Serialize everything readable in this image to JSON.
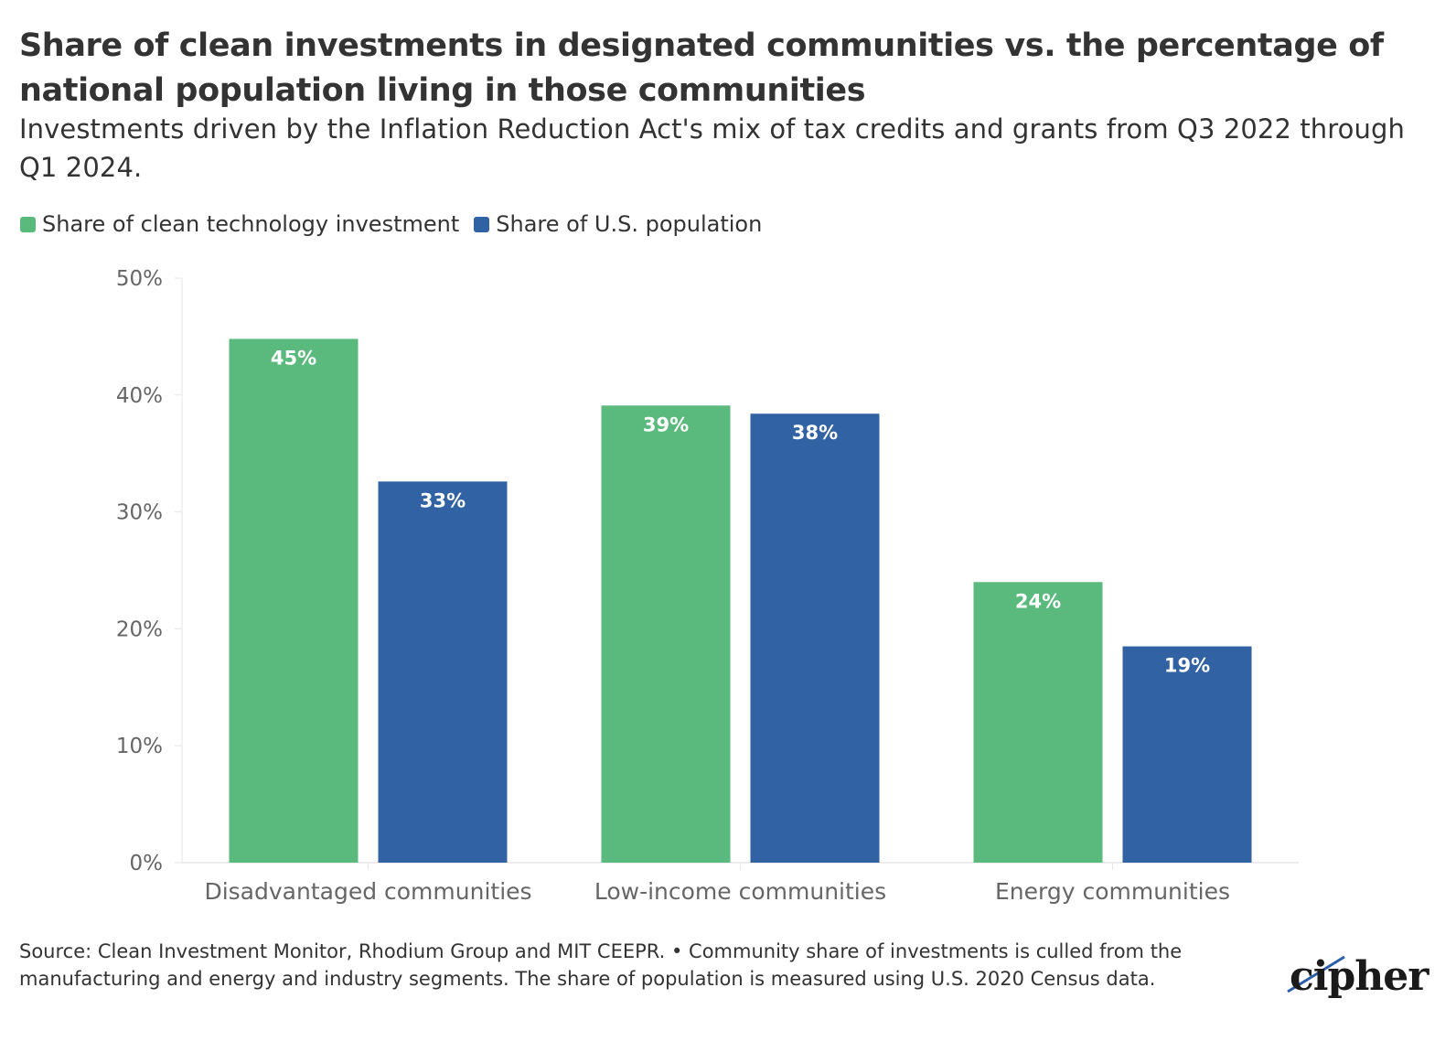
{
  "title": "Share of clean investments in designated communities vs. the percentage of national population living in those communities",
  "subtitle": "Investments driven by the Inflation Reduction Act's mix of tax credits and grants from Q3 2022 through Q1 2024.",
  "legend": [
    {
      "label": "Share of clean technology investment",
      "color": "#5ab97c"
    },
    {
      "label": "Share of U.S. population",
      "color": "#3162a3"
    }
  ],
  "source": "Source: Clean Investment Monitor, Rhodium Group and MIT CEEPR. • Community share of investments is culled from the manufacturing and energy and industry segments. The share of population is measured using U.S. 2020 Census data.",
  "logo": {
    "text": "cipher"
  },
  "colors": {
    "green": "#5ab97c",
    "blue": "#3162a3",
    "text": "#333333",
    "axis_text": "#666666",
    "gridline": "#e6e6e6"
  },
  "chart_data": {
    "type": "bar",
    "categories": [
      "Disadvantaged communities",
      "Low-income communities",
      "Energy communities"
    ],
    "series": [
      {
        "name": "Share of clean technology investment",
        "values": [
          44.8,
          39.1,
          24.0
        ],
        "labels": [
          "45%",
          "39%",
          "24%"
        ],
        "color": "#5ab97c"
      },
      {
        "name": "Share of U.S. population",
        "values": [
          32.6,
          38.4,
          18.5
        ],
        "labels": [
          "33%",
          "38%",
          "19%"
        ],
        "color": "#3162a3"
      }
    ],
    "ylim": [
      0,
      50
    ],
    "yticks": [
      0,
      10,
      20,
      30,
      40,
      50
    ],
    "ytick_labels": [
      "0%",
      "10%",
      "20%",
      "30%",
      "40%",
      "50%"
    ],
    "xlabel": "",
    "ylabel": "",
    "grid": false,
    "legend_position": "top-left"
  }
}
